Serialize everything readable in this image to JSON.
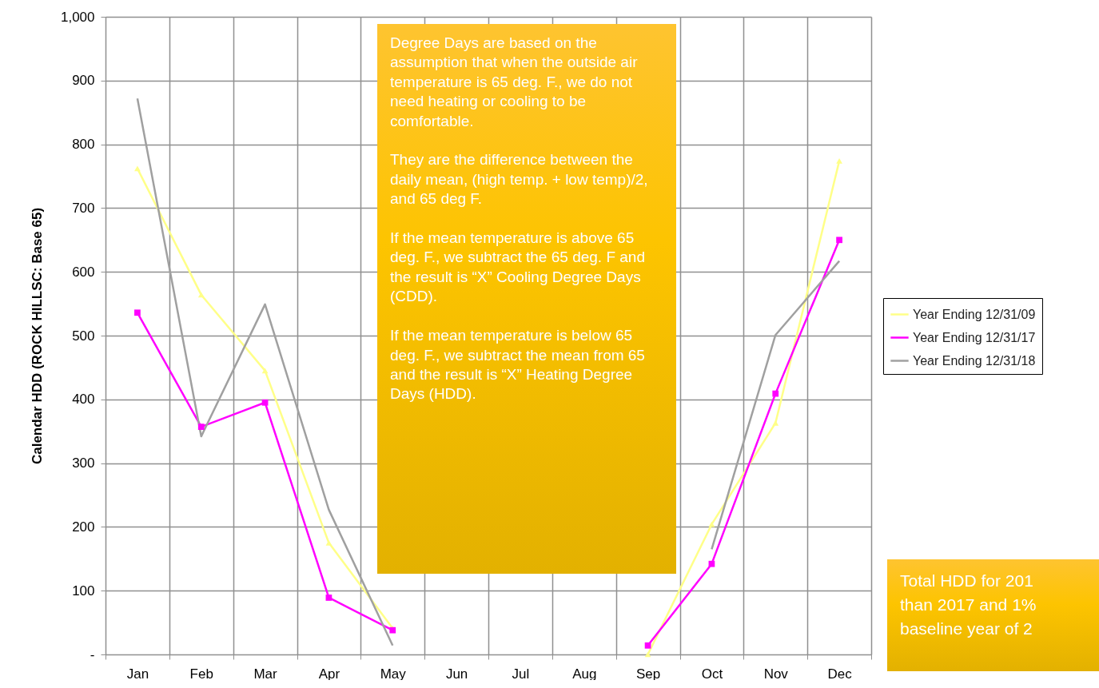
{
  "chart_data": {
    "type": "line",
    "ylabel": "Calendar HDD (ROCK HILLSC: Base 65)",
    "categories": [
      "Jan",
      "Feb",
      "Mar",
      "Apr",
      "May",
      "Jun",
      "Jul",
      "Aug",
      "Sep",
      "Oct",
      "Nov",
      "Dec"
    ],
    "series": [
      {
        "name": "Year Ending 12/31/09",
        "color": "#ffff88",
        "marker": "triangle",
        "values": [
          762,
          564,
          445,
          175,
          41,
          null,
          null,
          null,
          0,
          204,
          363,
          774
        ]
      },
      {
        "name": "Year Ending 12/31/17",
        "color": "#ff00ff",
        "marker": "square",
        "values": [
          536,
          357,
          395,
          89,
          38,
          null,
          null,
          null,
          14,
          142,
          409,
          650
        ]
      },
      {
        "name": "Year Ending 12/31/18",
        "color": "#a0a0a0",
        "values": [
          872,
          342,
          549,
          227,
          14,
          null,
          null,
          null,
          null,
          165,
          501,
          617
        ]
      }
    ],
    "ylim": [
      0,
      1000
    ],
    "yticks": [
      {
        "value": 0,
        "label": "-"
      },
      100,
      200,
      300,
      400,
      500,
      600,
      700,
      800,
      900,
      {
        "value": 1000,
        "label": "1,000"
      }
    ],
    "grid": true,
    "legend": "right",
    "annotations": [
      "Degree Days are based on the assumption that when the outside air temperature is 65 deg. F., we do not need heating or cooling to be comfortable.\n\nThey are the difference between the daily mean, (high temp. + low temp)/2, and 65 deg F.\n\nIf the mean temperature is above 65 deg. F., we subtract the 65 deg. F and the result is “X” Cooling Degree Days (CDD).\n\nIf the mean temperature is below 65 deg. F., we subtract the mean from 65 and the result is “X” Heating Degree Days (HDD).",
      "Total HDD for 201\nthan 2017 and 1%\nbaseline year of 2"
    ]
  }
}
